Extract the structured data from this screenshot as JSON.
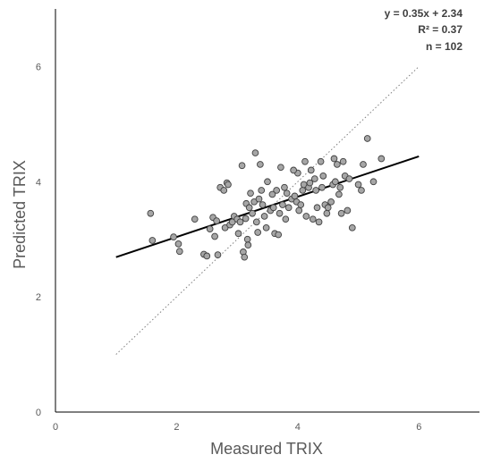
{
  "chart_data": {
    "type": "scatter",
    "xlabel": "Measured TRIX",
    "ylabel": "Predicted TRIX",
    "xlim": [
      0,
      7
    ],
    "ylim": [
      0,
      7
    ],
    "x_ticks": [
      "0",
      "2",
      "4",
      "6"
    ],
    "y_ticks": [
      "0",
      "2",
      "4",
      "6"
    ],
    "grid": false,
    "annotations": [
      "y = 0.35x + 2.34",
      "R² = 0.37",
      "n = 102"
    ],
    "trendline": {
      "slope": 0.35,
      "intercept": 2.34,
      "x_range": [
        1,
        6
      ],
      "style": "solid"
    },
    "identity_line": {
      "x_range": [
        1,
        6
      ],
      "style": "dotted"
    },
    "colors": {
      "point_fill": "#a6a6a6",
      "point_stroke": "#404040",
      "trendline": "#000000",
      "identity": "#7f7f7f",
      "axis": "#000000"
    },
    "points": [
      [
        1.57,
        3.45
      ],
      [
        1.6,
        2.98
      ],
      [
        1.95,
        3.04
      ],
      [
        2.03,
        2.92
      ],
      [
        2.05,
        2.79
      ],
      [
        2.3,
        3.35
      ],
      [
        2.45,
        2.74
      ],
      [
        2.5,
        2.71
      ],
      [
        2.55,
        3.18
      ],
      [
        2.6,
        3.38
      ],
      [
        2.63,
        3.05
      ],
      [
        2.66,
        3.32
      ],
      [
        2.68,
        2.73
      ],
      [
        2.72,
        3.9
      ],
      [
        2.78,
        3.85
      ],
      [
        2.8,
        3.2
      ],
      [
        2.83,
        3.98
      ],
      [
        2.85,
        3.95
      ],
      [
        2.88,
        3.25
      ],
      [
        2.92,
        3.3
      ],
      [
        2.95,
        3.4
      ],
      [
        3.0,
        3.35
      ],
      [
        3.02,
        3.1
      ],
      [
        3.05,
        3.3
      ],
      [
        3.08,
        4.28
      ],
      [
        3.1,
        2.78
      ],
      [
        3.12,
        2.69
      ],
      [
        3.14,
        3.36
      ],
      [
        3.15,
        3.62
      ],
      [
        3.17,
        3.0
      ],
      [
        3.18,
        2.9
      ],
      [
        3.2,
        3.55
      ],
      [
        3.22,
        3.8
      ],
      [
        3.25,
        3.45
      ],
      [
        3.28,
        3.65
      ],
      [
        3.3,
        4.5
      ],
      [
        3.32,
        3.3
      ],
      [
        3.34,
        3.12
      ],
      [
        3.36,
        3.7
      ],
      [
        3.38,
        4.3
      ],
      [
        3.4,
        3.85
      ],
      [
        3.42,
        3.6
      ],
      [
        3.45,
        3.4
      ],
      [
        3.48,
        3.2
      ],
      [
        3.5,
        4.0
      ],
      [
        3.55,
        3.5
      ],
      [
        3.6,
        3.55
      ],
      [
        3.62,
        3.1
      ],
      [
        3.65,
        3.85
      ],
      [
        3.68,
        3.08
      ],
      [
        3.7,
        3.45
      ],
      [
        3.72,
        4.25
      ],
      [
        3.75,
        3.6
      ],
      [
        3.78,
        3.9
      ],
      [
        3.8,
        3.35
      ],
      [
        3.82,
        3.8
      ],
      [
        3.85,
        3.55
      ],
      [
        3.9,
        3.7
      ],
      [
        3.95,
        3.75
      ],
      [
        3.98,
        3.65
      ],
      [
        4.0,
        4.15
      ],
      [
        4.02,
        3.5
      ],
      [
        4.05,
        3.6
      ],
      [
        4.08,
        3.85
      ],
      [
        4.1,
        3.95
      ],
      [
        4.12,
        4.35
      ],
      [
        4.14,
        3.4
      ],
      [
        4.18,
        3.9
      ],
      [
        4.2,
        3.98
      ],
      [
        4.22,
        4.2
      ],
      [
        4.25,
        3.35
      ],
      [
        4.28,
        4.05
      ],
      [
        4.3,
        3.85
      ],
      [
        4.32,
        3.55
      ],
      [
        4.35,
        3.3
      ],
      [
        4.38,
        4.35
      ],
      [
        4.4,
        3.9
      ],
      [
        4.42,
        4.1
      ],
      [
        4.45,
        3.6
      ],
      [
        4.48,
        3.45
      ],
      [
        4.5,
        3.55
      ],
      [
        4.55,
        3.65
      ],
      [
        4.58,
        3.95
      ],
      [
        4.6,
        4.4
      ],
      [
        4.62,
        4.0
      ],
      [
        4.65,
        4.3
      ],
      [
        4.68,
        3.78
      ],
      [
        4.7,
        3.9
      ],
      [
        4.72,
        3.45
      ],
      [
        4.75,
        4.35
      ],
      [
        4.78,
        4.1
      ],
      [
        4.82,
        3.5
      ],
      [
        4.85,
        4.05
      ],
      [
        4.9,
        3.2
      ],
      [
        5.0,
        3.95
      ],
      [
        5.05,
        3.85
      ],
      [
        5.08,
        4.3
      ],
      [
        5.15,
        4.75
      ],
      [
        5.25,
        4.0
      ],
      [
        5.38,
        4.4
      ],
      [
        3.93,
        4.2
      ],
      [
        3.58,
        3.78
      ]
    ]
  }
}
